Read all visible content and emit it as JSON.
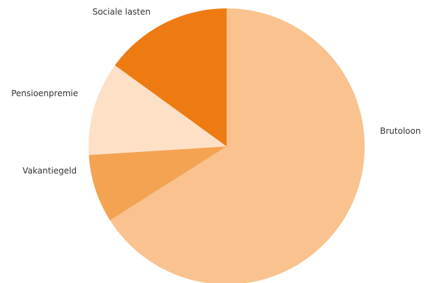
{
  "chart_data": {
    "type": "pie",
    "title": "",
    "start_angle_deg": 90,
    "direction": "clockwise",
    "series": [
      {
        "values": [
          {
            "label": "Brutoloon",
            "value": 66,
            "color": "#F9C28E"
          },
          {
            "label": "Vakantiegeld",
            "value": 8,
            "color": "#F4A352"
          },
          {
            "label": "Pensioenpremie",
            "value": 11,
            "color": "#FDE0C6"
          },
          {
            "label": "Sociale lasten",
            "value": 15,
            "color": "#EE7B11"
          }
        ]
      }
    ],
    "legend": "none",
    "labels_outside": true
  }
}
